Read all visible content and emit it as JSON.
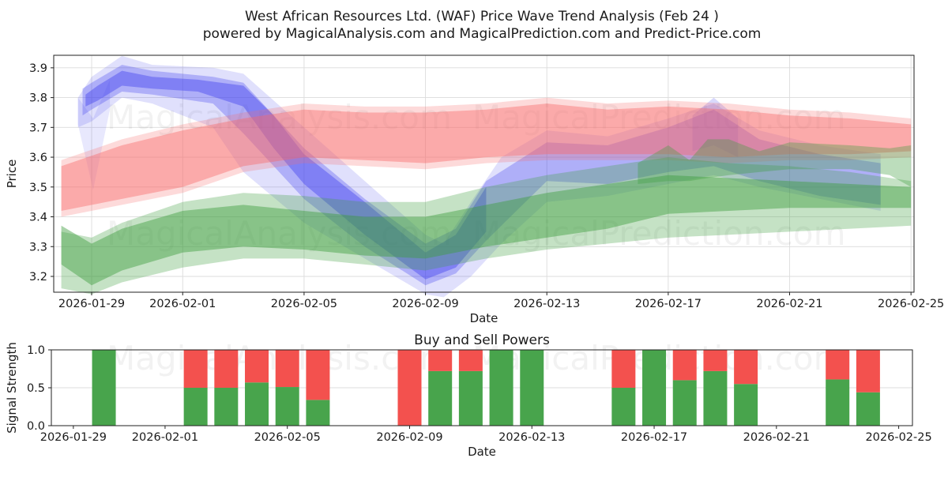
{
  "page": {
    "title_line1": "West African Resources Ltd. (WAF) Price Wave Trend Analysis (Feb 24 )",
    "title_line2": "powered by MagicalAnalysis.com and MagicalPrediction.com and Predict-Price.com"
  },
  "watermarks": {
    "left": "MagicalAnalysis.com",
    "right": "MagicalPrediction.com"
  },
  "colors": {
    "blue_band": "#4040ee",
    "red_band": "#f96a6a",
    "green_band": "#3f9e3f",
    "buy_bar": "#48a44c",
    "sell_bar": "#f3514e",
    "grid": "#dcdcdc",
    "spine": "#222222"
  },
  "chart_data": [
    {
      "id": "price",
      "type": "area",
      "title": "",
      "ylabel": "Price",
      "xlabel": "Date",
      "ylim": [
        3.147,
        3.942
      ],
      "yticks": [
        3.2,
        3.3,
        3.4,
        3.5,
        3.6,
        3.7,
        3.8,
        3.9
      ],
      "xlim_days": [
        -0.25,
        28.1
      ],
      "xticks": [
        {
          "d": 1,
          "label": "2026-01-29"
        },
        {
          "d": 4,
          "label": "2026-02-01"
        },
        {
          "d": 8,
          "label": "2026-02-05"
        },
        {
          "d": 12,
          "label": "2026-02-09"
        },
        {
          "d": 16,
          "label": "2026-02-13"
        },
        {
          "d": 20,
          "label": "2026-02-17"
        },
        {
          "d": 24,
          "label": "2026-02-21"
        },
        {
          "d": 28,
          "label": "2026-02-25"
        }
      ],
      "grid": true,
      "note_days_origin": "d = days after 2026-01-28",
      "bands": [
        {
          "name": "blue-wave-outer",
          "color": "#4040ee",
          "alpha": 0.16,
          "points": [
            [
              0.55,
              3.8,
              3.7
            ],
            [
              1,
              3.87,
              3.72
            ],
            [
              2,
              3.94,
              3.8
            ],
            [
              3,
              3.91,
              3.78
            ],
            [
              5,
              3.9,
              3.7
            ],
            [
              6,
              3.88,
              3.55
            ],
            [
              8,
              3.7,
              3.38
            ],
            [
              10,
              3.52,
              3.26
            ],
            [
              12,
              3.34,
              3.14
            ],
            [
              12.6,
              3.31,
              3.13
            ],
            [
              13.5,
              3.45,
              3.2
            ],
            [
              14.5,
              3.6,
              3.31
            ],
            [
              16,
              3.69,
              3.45
            ],
            [
              18,
              3.67,
              3.47
            ],
            [
              20,
              3.73,
              3.51
            ],
            [
              21.5,
              3.78,
              3.54
            ],
            [
              23,
              3.69,
              3.5
            ],
            [
              25,
              3.64,
              3.46
            ],
            [
              27,
              3.61,
              3.42
            ]
          ]
        },
        {
          "name": "blue-wave-flare",
          "color": "#4040ee",
          "alpha": 0.12,
          "points": [
            [
              0.55,
              3.8,
              3.71
            ],
            [
              1.05,
              3.73,
              3.49
            ],
            [
              1.6,
              3.86,
              3.76
            ]
          ]
        },
        {
          "name": "blue-wave-mid",
          "color": "#4040ee",
          "alpha": 0.3,
          "points": [
            [
              0.7,
              3.83,
              3.74
            ],
            [
              1,
              3.85,
              3.76
            ],
            [
              2,
              3.91,
              3.82
            ],
            [
              3,
              3.89,
              3.81
            ],
            [
              5,
              3.87,
              3.78
            ],
            [
              6,
              3.85,
              3.68
            ],
            [
              8,
              3.63,
              3.46
            ],
            [
              10,
              3.46,
              3.3
            ],
            [
              12,
              3.31,
              3.17
            ],
            [
              13,
              3.36,
              3.21
            ],
            [
              14,
              3.52,
              3.32
            ],
            [
              16,
              3.65,
              3.52
            ],
            [
              18,
              3.64,
              3.51
            ],
            [
              20,
              3.7,
              3.55
            ],
            [
              21.5,
              3.76,
              3.57
            ],
            [
              23,
              3.66,
              3.52
            ],
            [
              25,
              3.61,
              3.47
            ],
            [
              27,
              3.58,
              3.44
            ]
          ]
        },
        {
          "name": "blue-wave-core",
          "color": "#4040ee",
          "alpha": 0.42,
          "points": [
            [
              0.8,
              3.81,
              3.77
            ],
            [
              1.2,
              3.84,
              3.79
            ],
            [
              2,
              3.89,
              3.84
            ],
            [
              3,
              3.87,
              3.83
            ],
            [
              4.5,
              3.86,
              3.82
            ],
            [
              6,
              3.84,
              3.77
            ],
            [
              7,
              3.74,
              3.63
            ],
            [
              8,
              3.61,
              3.51
            ],
            [
              10,
              3.45,
              3.34
            ],
            [
              12,
              3.28,
              3.19
            ],
            [
              13,
              3.34,
              3.23
            ],
            [
              14,
              3.5,
              3.35
            ]
          ]
        },
        {
          "name": "blue-wave-bump",
          "color": "#4040ee",
          "alpha": 0.2,
          "points": [
            [
              20.8,
              3.74,
              3.62
            ],
            [
              21.5,
              3.8,
              3.64
            ],
            [
              22.3,
              3.73,
              3.6
            ]
          ]
        },
        {
          "name": "red-band-outer",
          "color": "#f96a6a",
          "alpha": 0.25,
          "points": [
            [
              0,
              3.59,
              3.4
            ],
            [
              2,
              3.66,
              3.44
            ],
            [
              4,
              3.71,
              3.48
            ],
            [
              6,
              3.75,
              3.55
            ],
            [
              8,
              3.78,
              3.58
            ],
            [
              10,
              3.77,
              3.57
            ],
            [
              12,
              3.77,
              3.56
            ],
            [
              14,
              3.78,
              3.58
            ],
            [
              16,
              3.8,
              3.59
            ],
            [
              18,
              3.78,
              3.59
            ],
            [
              20,
              3.79,
              3.59
            ],
            [
              22,
              3.78,
              3.58
            ],
            [
              24,
              3.76,
              3.59
            ],
            [
              26,
              3.75,
              3.59
            ],
            [
              28,
              3.73,
              3.6
            ]
          ]
        },
        {
          "name": "red-band-main",
          "color": "#f96a6a",
          "alpha": 0.42,
          "points": [
            [
              0,
              3.57,
              3.42
            ],
            [
              2,
              3.64,
              3.46
            ],
            [
              4,
              3.69,
              3.5
            ],
            [
              6,
              3.73,
              3.57
            ],
            [
              8,
              3.76,
              3.6
            ],
            [
              10,
              3.75,
              3.59
            ],
            [
              12,
              3.75,
              3.58
            ],
            [
              14,
              3.76,
              3.6
            ],
            [
              16,
              3.78,
              3.61
            ],
            [
              18,
              3.76,
              3.61
            ],
            [
              20,
              3.77,
              3.61
            ],
            [
              22,
              3.76,
              3.6
            ],
            [
              24,
              3.74,
              3.61
            ],
            [
              26,
              3.73,
              3.61
            ],
            [
              28,
              3.71,
              3.62
            ]
          ]
        },
        {
          "name": "green-band-outer",
          "color": "#3f9e3f",
          "alpha": 0.3,
          "points": [
            [
              0,
              3.35,
              3.16
            ],
            [
              1,
              3.33,
              3.14
            ],
            [
              2,
              3.38,
              3.18
            ],
            [
              4,
              3.45,
              3.23
            ],
            [
              6,
              3.48,
              3.26
            ],
            [
              8,
              3.47,
              3.26
            ],
            [
              10,
              3.45,
              3.24
            ],
            [
              12,
              3.45,
              3.22
            ],
            [
              14,
              3.5,
              3.26
            ],
            [
              16,
              3.54,
              3.29
            ],
            [
              18,
              3.57,
              3.31
            ],
            [
              20,
              3.6,
              3.33
            ],
            [
              22,
              3.58,
              3.34
            ],
            [
              24,
              3.57,
              3.35
            ],
            [
              26,
              3.55,
              3.36
            ],
            [
              28,
              3.52,
              3.37
            ]
          ]
        },
        {
          "name": "green-band-core",
          "color": "#3f9e3f",
          "alpha": 0.45,
          "points": [
            [
              0,
              3.37,
              3.24
            ],
            [
              1,
              3.31,
              3.17
            ],
            [
              2,
              3.36,
              3.22
            ],
            [
              4,
              3.42,
              3.28
            ],
            [
              6,
              3.44,
              3.3
            ],
            [
              8,
              3.42,
              3.29
            ],
            [
              10,
              3.4,
              3.27
            ],
            [
              12,
              3.4,
              3.26
            ],
            [
              14,
              3.44,
              3.3
            ],
            [
              16,
              3.48,
              3.33
            ],
            [
              18,
              3.51,
              3.36
            ],
            [
              20,
              3.54,
              3.41
            ],
            [
              22,
              3.53,
              3.42
            ],
            [
              24,
              3.52,
              3.43
            ],
            [
              26,
              3.51,
              3.43
            ],
            [
              28,
              3.5,
              3.43
            ]
          ]
        },
        {
          "name": "green-band-upper",
          "color": "#3f9e3f",
          "alpha": 0.35,
          "points": [
            [
              19,
              3.58,
              3.51
            ],
            [
              20,
              3.64,
              3.52
            ],
            [
              20.7,
              3.59,
              3.52
            ],
            [
              21.3,
              3.66,
              3.53
            ],
            [
              22,
              3.66,
              3.54
            ],
            [
              23,
              3.62,
              3.55
            ],
            [
              24,
              3.65,
              3.56
            ],
            [
              26,
              3.64,
              3.56
            ],
            [
              27.3,
              3.63,
              3.54
            ],
            [
              28,
              3.64,
              3.5
            ]
          ]
        }
      ]
    },
    {
      "id": "signal",
      "type": "bar",
      "title": "Buy and Sell Powers",
      "ylabel": "Signal Strength",
      "xlabel": "Date",
      "ylim": [
        0.0,
        1.0
      ],
      "yticks": [
        0.0,
        0.5,
        1.0
      ],
      "xlim_days": [
        0.28,
        28.45
      ],
      "xticks": [
        {
          "d": 1,
          "label": "2026-01-29"
        },
        {
          "d": 4,
          "label": "2026-02-01"
        },
        {
          "d": 8,
          "label": "2026-02-05"
        },
        {
          "d": 12,
          "label": "2026-02-09"
        },
        {
          "d": 16,
          "label": "2026-02-13"
        },
        {
          "d": 20,
          "label": "2026-02-17"
        },
        {
          "d": 24,
          "label": "2026-02-21"
        },
        {
          "d": 28,
          "label": "2026-02-25"
        }
      ],
      "series": [
        {
          "name": "buy",
          "color": "#48a44c"
        },
        {
          "name": "sell",
          "color": "#f3514e"
        }
      ],
      "bars": [
        {
          "date": "2026-01-30",
          "d": 2,
          "buy": 1.0,
          "sell": 0.0
        },
        {
          "date": "2026-02-02",
          "d": 5,
          "buy": 0.5,
          "sell": 0.5
        },
        {
          "date": "2026-02-03",
          "d": 6,
          "buy": 0.5,
          "sell": 0.5
        },
        {
          "date": "2026-02-04",
          "d": 7,
          "buy": 0.57,
          "sell": 0.43
        },
        {
          "date": "2026-02-05",
          "d": 8,
          "buy": 0.51,
          "sell": 0.49
        },
        {
          "date": "2026-02-06",
          "d": 9,
          "buy": 0.34,
          "sell": 0.66
        },
        {
          "date": "2026-02-09",
          "d": 12,
          "buy": 0.0,
          "sell": 1.0
        },
        {
          "date": "2026-02-10",
          "d": 13,
          "buy": 0.72,
          "sell": 0.28
        },
        {
          "date": "2026-02-11",
          "d": 14,
          "buy": 0.72,
          "sell": 0.28
        },
        {
          "date": "2026-02-12",
          "d": 15,
          "buy": 1.0,
          "sell": 0.0
        },
        {
          "date": "2026-02-13",
          "d": 16,
          "buy": 1.0,
          "sell": 0.0
        },
        {
          "date": "2026-02-16",
          "d": 19,
          "buy": 0.5,
          "sell": 0.5
        },
        {
          "date": "2026-02-17",
          "d": 20,
          "buy": 1.0,
          "sell": 0.0
        },
        {
          "date": "2026-02-18",
          "d": 21,
          "buy": 0.6,
          "sell": 0.4
        },
        {
          "date": "2026-02-19",
          "d": 22,
          "buy": 0.72,
          "sell": 0.28
        },
        {
          "date": "2026-02-20",
          "d": 23,
          "buy": 0.55,
          "sell": 0.45
        },
        {
          "date": "2026-02-23",
          "d": 26,
          "buy": 0.61,
          "sell": 0.39
        },
        {
          "date": "2026-02-24",
          "d": 27,
          "buy": 0.44,
          "sell": 0.56
        }
      ]
    }
  ]
}
